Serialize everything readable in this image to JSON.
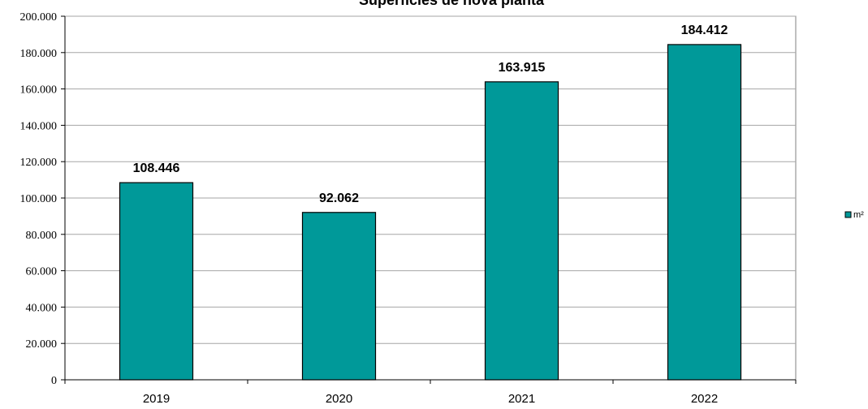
{
  "chart_data": {
    "type": "bar",
    "title": "Superficies de nova planta",
    "categories": [
      "2019",
      "2020",
      "2021",
      "2022"
    ],
    "series": [
      {
        "name": "m²",
        "values": [
          108446,
          92062,
          163915,
          184412
        ],
        "value_labels": [
          "108.446",
          "92.062",
          "163.915",
          "184.412"
        ],
        "color": "#009999"
      }
    ],
    "ylim": [
      0,
      200000
    ],
    "y_ticks": [
      0,
      20000,
      40000,
      60000,
      80000,
      100000,
      120000,
      140000,
      160000,
      180000,
      200000
    ],
    "y_tick_labels": [
      "0",
      "20.000",
      "40.000",
      "60.000",
      "80.000",
      "100.000",
      "120.000",
      "140.000",
      "160.000",
      "180.000",
      "200.000"
    ],
    "xlabel": "",
    "ylabel": "",
    "grid": true,
    "legend_position": "right",
    "plot_background": "#ffffff"
  }
}
